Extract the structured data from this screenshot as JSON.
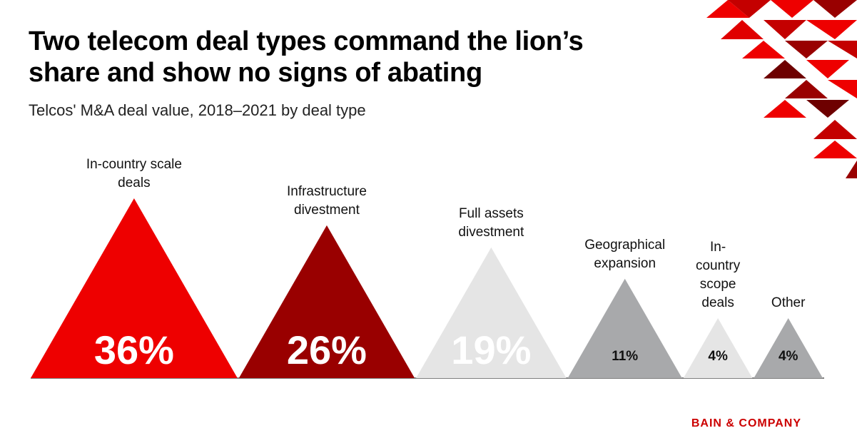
{
  "chart_data": {
    "type": "triangle",
    "title": "Two telecom deal types command the lion’s share and show no signs of abating",
    "subtitle": "Telcos' M&A deal value, 2018–2021 by deal type",
    "categories": [
      "In-country scale deals",
      "Infrastructure divestment",
      "Full assets divestment",
      "Geographical expansion",
      "In-country scope deals",
      "Other"
    ],
    "values": [
      36,
      26,
      19,
      11,
      4,
      4
    ],
    "value_labels": [
      "36%",
      "26%",
      "19%",
      "11%",
      "4%",
      "4%"
    ],
    "colors": [
      "#ee0000",
      "#990000",
      "#e5e5e5",
      "#a8a9ab",
      "#e5e5e5",
      "#a8a9ab"
    ],
    "brand": "BAIN & COMPANY"
  }
}
